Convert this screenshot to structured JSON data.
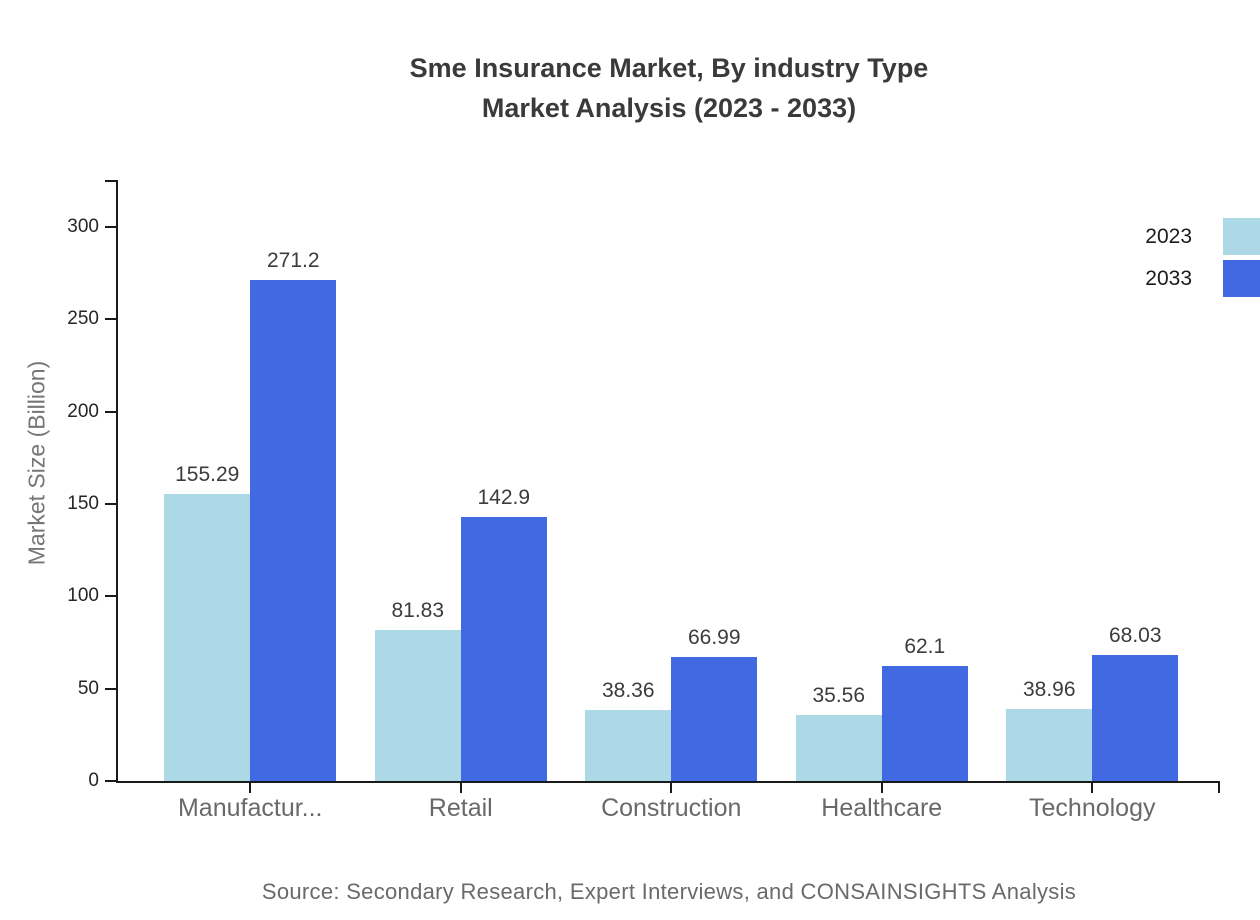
{
  "title": {
    "line1": "Sme Insurance Market, By industry Type",
    "line2": "Market Analysis (2023 - 2033)"
  },
  "y_axis": {
    "label": "Market Size (Billion)"
  },
  "legend": [
    {
      "label": "2023",
      "color": "#add8e6"
    },
    {
      "label": "2033",
      "color": "#4169e1"
    }
  ],
  "source": "Source: Secondary Research, Expert Interviews, and CONSAINSIGHTS Analysis",
  "chart_data": {
    "type": "bar",
    "title": "Sme Insurance Market, By industry Type Market Analysis (2023 - 2033)",
    "categories": [
      "Manufactur...",
      "Retail",
      "Construction",
      "Healthcare",
      "Technology"
    ],
    "series": [
      {
        "name": "2023",
        "color": "#add8e6",
        "values": [
          155.29,
          81.83,
          38.36,
          35.56,
          38.96
        ]
      },
      {
        "name": "2033",
        "color": "#4169e1",
        "values": [
          271.2,
          142.9,
          66.99,
          62.1,
          68.03
        ]
      }
    ],
    "value_labels": [
      [
        "155.29",
        "81.83",
        "38.36",
        "35.56",
        "38.96"
      ],
      [
        "271.2",
        "142.9",
        "66.99",
        "62.1",
        "68.03"
      ]
    ],
    "xlabel": "",
    "ylabel": "Market Size (Billion)",
    "yticks": [
      0,
      50,
      100,
      150,
      200,
      250,
      300
    ],
    "ylim": [
      0,
      325
    ],
    "grid": false,
    "legend_position": "top-right",
    "bar_value_labels_shown": true
  }
}
